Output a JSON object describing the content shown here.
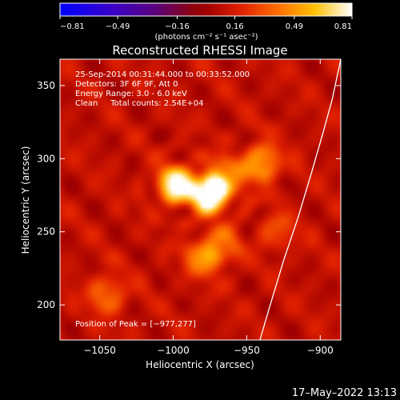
{
  "colorbar": {
    "tick_labels": [
      "−0.81",
      "−0.49",
      "−0.16",
      "0.16",
      "0.49",
      "0.81"
    ],
    "tick_values": [
      -0.81,
      -0.49,
      -0.16,
      0.16,
      0.49,
      0.81
    ],
    "range": [
      -0.81,
      0.81
    ],
    "unit_label": "(photons cm⁻² s⁻¹ asec⁻²)",
    "stops": [
      {
        "t": 0.0,
        "c": "#0000ff"
      },
      {
        "t": 0.18,
        "c": "#3a00c8"
      },
      {
        "t": 0.33,
        "c": "#5a007a"
      },
      {
        "t": 0.45,
        "c": "#8a0010"
      },
      {
        "t": 0.5,
        "c": "#a00000"
      },
      {
        "t": 0.62,
        "c": "#e02000"
      },
      {
        "t": 0.75,
        "c": "#ff7000"
      },
      {
        "t": 0.87,
        "c": "#ffc000"
      },
      {
        "t": 1.0,
        "c": "#ffffff"
      }
    ]
  },
  "chart_data": {
    "type": "heatmap",
    "title": "Reconstructed RHESSI Image",
    "xlabel": "Heliocentric X (arcsec)",
    "ylabel": "Heliocentric Y (arcsec)",
    "xlim": [
      -1077,
      -886
    ],
    "ylim": [
      176,
      368
    ],
    "x_ticks": [
      -1050,
      -1000,
      -950,
      -900
    ],
    "y_ticks": [
      200,
      250,
      300,
      350
    ],
    "x_tick_labels": [
      "−1050",
      "−1000",
      "−950",
      "−900"
    ],
    "y_tick_labels": [
      "200",
      "250",
      "300",
      "350"
    ],
    "annotations": [
      "25-Sep-2014 00:31:44.000 to 00:33:52.000",
      "Detectors: 3F 6F 9F, Att 0",
      "Energy Range: 3.0 - 6.0 keV",
      "Clean     Total counts: 2.54E+04"
    ],
    "peak_label": "Position of Peak = [−977,277]",
    "peak": [
      -977,
      277
    ],
    "sources": [
      {
        "x": -975,
        "y": 276,
        "amp": 0.81
      },
      {
        "x": -998,
        "y": 282,
        "amp": 0.7
      },
      {
        "x": -940,
        "y": 297,
        "amp": 0.45
      },
      {
        "x": -965,
        "y": 287,
        "amp": 0.35
      },
      {
        "x": -968,
        "y": 240,
        "amp": 0.28
      },
      {
        "x": -980,
        "y": 232,
        "amp": 0.32
      },
      {
        "x": -1045,
        "y": 207,
        "amp": 0.3
      },
      {
        "x": -930,
        "y": 250,
        "amp": 0.2
      }
    ],
    "limb": [
      [
        -941,
        176
      ],
      [
        -934,
        200
      ],
      [
        -925,
        230
      ],
      [
        -915,
        260
      ],
      [
        -906,
        290
      ],
      [
        -898,
        318
      ],
      [
        -892,
        340
      ],
      [
        -886,
        368
      ]
    ]
  },
  "footer_timestamp": "17–May–2022 13:13"
}
